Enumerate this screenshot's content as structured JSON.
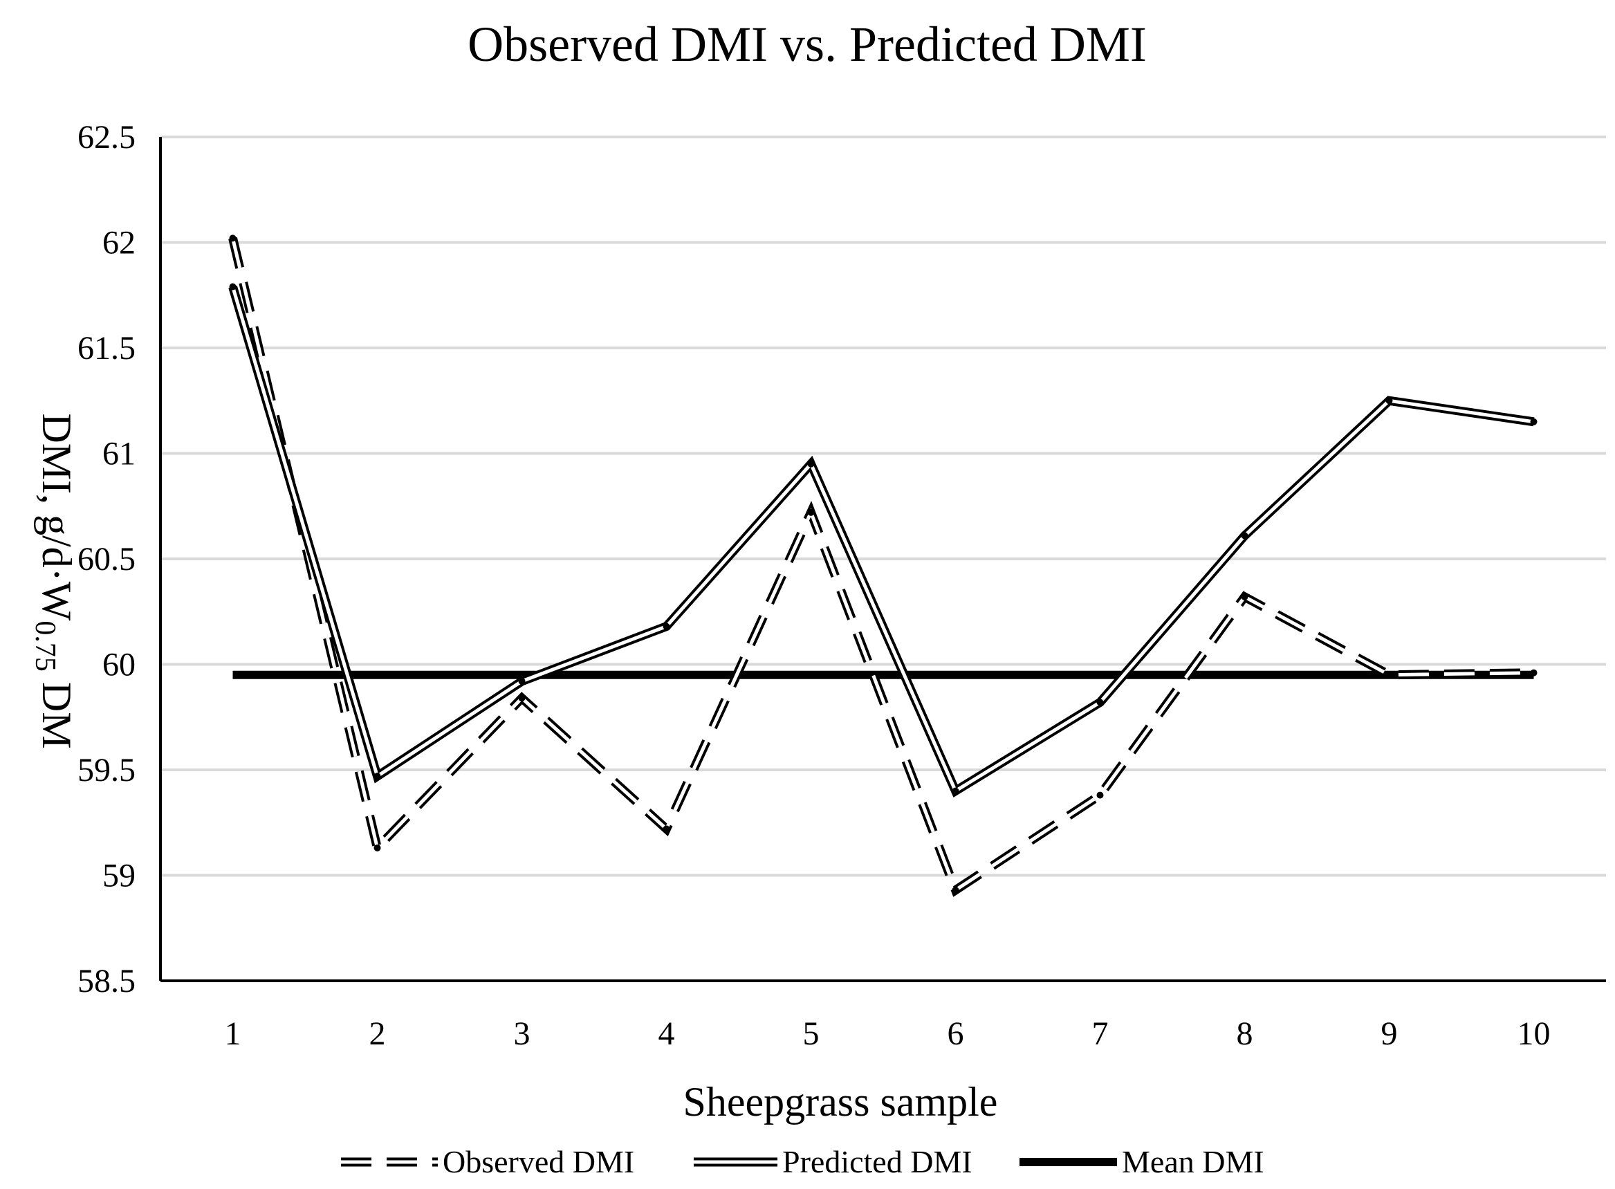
{
  "chart_data": {
    "type": "line",
    "title": "Observed DMI vs. Predicted DMI",
    "xlabel": "Sheepgrass sample",
    "ylabel": "DMI, g/d·W0.75 DM",
    "ylabel_parts": {
      "prefix": "DMI, g/d·W",
      "subscript": "0.75",
      "suffix": " DM"
    },
    "categories": [
      "1",
      "2",
      "3",
      "4",
      "5",
      "6",
      "7",
      "8",
      "9",
      "10"
    ],
    "ylim": [
      58.5,
      62.5
    ],
    "yticks": [
      58.5,
      59,
      59.5,
      60,
      60.5,
      61,
      61.5,
      62,
      62.5
    ],
    "ytick_labels": [
      "58.5",
      "59",
      "59.5",
      "60",
      "60.5",
      "61",
      "61.5",
      "62",
      "62.5"
    ],
    "grid": true,
    "legend_position": "bottom",
    "series": [
      {
        "name": "Observed DMI",
        "style": "double-dashed",
        "values": [
          62.02,
          59.13,
          59.84,
          59.22,
          60.72,
          58.93,
          59.38,
          60.32,
          59.95,
          59.96
        ]
      },
      {
        "name": "Predicted DMI",
        "style": "double-solid",
        "values": [
          61.79,
          59.47,
          59.92,
          60.18,
          60.95,
          59.4,
          59.82,
          60.61,
          61.25,
          61.15
        ]
      },
      {
        "name": "Mean DMI",
        "style": "thick-solid",
        "values": [
          59.95,
          59.95,
          59.95,
          59.95,
          59.95,
          59.95,
          59.95,
          59.95,
          59.95,
          59.95
        ]
      }
    ]
  },
  "colors": {
    "line": "#000000",
    "grid": "#d9d9d9",
    "background": "#ffffff"
  }
}
